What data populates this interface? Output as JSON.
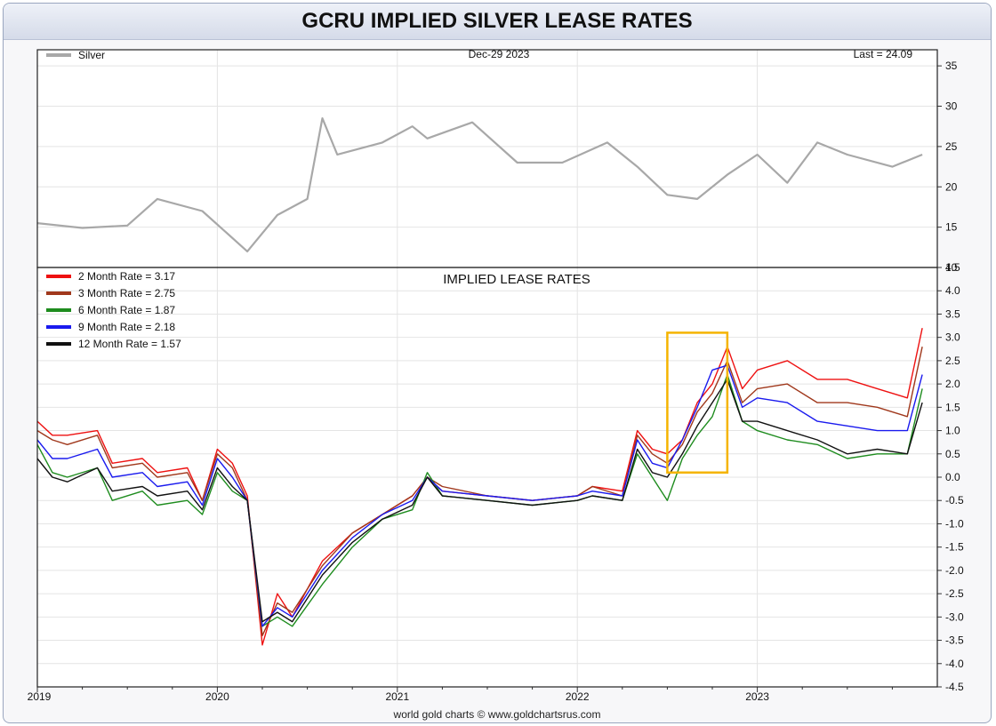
{
  "header": {
    "title": "GCRU IMPLIED SILVER LEASE RATES"
  },
  "footer": {
    "credit": "world gold charts © www.goldchartsrus.com"
  },
  "colors": {
    "silver": "#a8a8a8",
    "m2": "#ee1111",
    "m3": "#a0381c",
    "m6": "#1e8c1e",
    "m9": "#1a1aee",
    "m12": "#111111",
    "highlight": "#f5b400"
  },
  "chart_data": [
    {
      "type": "line",
      "date_label": "Dec-29  2023",
      "last_label": "Last = 24.09",
      "ylim": [
        10,
        37
      ],
      "yticks": [
        "35",
        "30",
        "25",
        "20",
        "15",
        "10"
      ],
      "grid": true,
      "legend_position": "top-left",
      "series": [
        {
          "name": "Silver",
          "x": [
            "2019-01",
            "2019-04",
            "2019-07",
            "2019-09",
            "2019-12",
            "2020-03",
            "2020-05",
            "2020-07",
            "2020-08",
            "2020-09",
            "2020-12",
            "2021-02",
            "2021-03",
            "2021-06",
            "2021-09",
            "2021-12",
            "2022-03",
            "2022-05",
            "2022-07",
            "2022-09",
            "2022-11",
            "2023-01",
            "2023-03",
            "2023-05",
            "2023-07",
            "2023-10",
            "2023-12"
          ],
          "values": [
            15.5,
            14.9,
            15.2,
            18.5,
            17.0,
            12.0,
            16.5,
            18.5,
            28.5,
            24.0,
            25.5,
            27.5,
            26.0,
            28.0,
            23.0,
            23.0,
            25.5,
            22.5,
            19.0,
            18.5,
            21.5,
            24.0,
            20.5,
            25.5,
            24.0,
            22.5,
            24.0
          ]
        }
      ]
    },
    {
      "type": "line",
      "title": "IMPLIED LEASE RATES",
      "ylim": [
        -4.5,
        4.5
      ],
      "yticks": [
        "4.5",
        "4.0",
        "3.5",
        "3.0",
        "2.5",
        "2.0",
        "1.5",
        "1.0",
        "0.5",
        "0.0",
        "-0.5",
        "-1.0",
        "-1.5",
        "-2.0",
        "-2.5",
        "-3.0",
        "-3.5",
        "-4.0",
        "-4.5"
      ],
      "x_ticklabels": [
        "2019",
        "2020",
        "2021",
        "2022",
        "2023"
      ],
      "grid": true,
      "legend_position": "top-left",
      "highlight_box": {
        "x_from": "2022-07",
        "x_to": "2022-11",
        "y_from": 0.1,
        "y_to": 3.1
      },
      "x": [
        "2019-01",
        "2019-02",
        "2019-03",
        "2019-05",
        "2019-06",
        "2019-08",
        "2019-09",
        "2019-11",
        "2019-12",
        "2020-01",
        "2020-02",
        "2020-03",
        "2020-04",
        "2020-05",
        "2020-06",
        "2020-08",
        "2020-10",
        "2020-12",
        "2021-02",
        "2021-03",
        "2021-04",
        "2021-07",
        "2021-10",
        "2022-01",
        "2022-02",
        "2022-04",
        "2022-05",
        "2022-06",
        "2022-07",
        "2022-08",
        "2022-09",
        "2022-10",
        "2022-11",
        "2022-12",
        "2023-01",
        "2023-03",
        "2023-05",
        "2023-07",
        "2023-09",
        "2023-11",
        "2023-12"
      ],
      "series": [
        {
          "name": "2 Month Rate",
          "legend": "2 Month Rate  = 3.17",
          "values": [
            1.2,
            0.9,
            0.9,
            1.0,
            0.3,
            0.4,
            0.1,
            0.2,
            -0.5,
            0.6,
            0.3,
            -0.4,
            -3.6,
            -2.5,
            -3.0,
            -1.8,
            -1.2,
            -0.8,
            -0.4,
            0.0,
            -0.3,
            -0.4,
            -0.5,
            -0.4,
            -0.2,
            -0.3,
            1.0,
            0.6,
            0.5,
            0.8,
            1.6,
            2.0,
            2.8,
            1.9,
            2.3,
            2.5,
            2.1,
            2.1,
            1.9,
            1.7,
            3.2
          ]
        },
        {
          "name": "3 Month Rate",
          "legend": "3 Month Rate  = 2.75",
          "values": [
            1.0,
            0.8,
            0.7,
            0.9,
            0.2,
            0.3,
            0.0,
            0.1,
            -0.5,
            0.5,
            0.2,
            -0.5,
            -3.4,
            -2.7,
            -2.9,
            -1.9,
            -1.2,
            -0.8,
            -0.4,
            0.0,
            -0.2,
            -0.4,
            -0.5,
            -0.4,
            -0.2,
            -0.4,
            0.9,
            0.5,
            0.3,
            0.7,
            1.4,
            1.8,
            2.5,
            1.6,
            1.9,
            2.0,
            1.6,
            1.6,
            1.5,
            1.3,
            2.8
          ]
        },
        {
          "name": "6 Month Rate",
          "legend": "6 Month Rate  = 1.87",
          "values": [
            0.7,
            0.1,
            0.0,
            0.2,
            -0.5,
            -0.3,
            -0.6,
            -0.5,
            -0.8,
            0.1,
            -0.3,
            -0.5,
            -3.2,
            -3.0,
            -3.2,
            -2.3,
            -1.5,
            -0.9,
            -0.7,
            0.1,
            -0.4,
            -0.5,
            -0.6,
            -0.5,
            -0.4,
            -0.5,
            0.5,
            0.0,
            -0.5,
            0.4,
            0.9,
            1.3,
            2.2,
            1.2,
            1.0,
            0.8,
            0.7,
            0.4,
            0.5,
            0.5,
            1.9
          ]
        },
        {
          "name": "9 Month Rate",
          "legend": "9 Month Rate  = 2.18",
          "values": [
            0.8,
            0.4,
            0.4,
            0.6,
            0.0,
            0.1,
            -0.2,
            -0.1,
            -0.6,
            0.4,
            0.0,
            -0.5,
            -3.2,
            -2.8,
            -3.0,
            -2.0,
            -1.3,
            -0.8,
            -0.5,
            0.0,
            -0.3,
            -0.4,
            -0.5,
            -0.4,
            -0.3,
            -0.4,
            0.8,
            0.3,
            0.2,
            0.8,
            1.5,
            2.3,
            2.4,
            1.5,
            1.7,
            1.6,
            1.2,
            1.1,
            1.0,
            1.0,
            2.2
          ]
        },
        {
          "name": "12 Month Rate",
          "legend": "12 Month Rate  = 1.57",
          "values": [
            0.4,
            0.0,
            -0.1,
            0.2,
            -0.3,
            -0.2,
            -0.4,
            -0.3,
            -0.7,
            0.2,
            -0.2,
            -0.5,
            -3.1,
            -2.9,
            -3.1,
            -2.1,
            -1.4,
            -0.9,
            -0.6,
            0.0,
            -0.4,
            -0.5,
            -0.6,
            -0.5,
            -0.4,
            -0.5,
            0.6,
            0.1,
            0.0,
            0.5,
            1.1,
            1.6,
            2.1,
            1.2,
            1.2,
            1.0,
            0.8,
            0.5,
            0.6,
            0.5,
            1.6
          ]
        }
      ]
    }
  ]
}
